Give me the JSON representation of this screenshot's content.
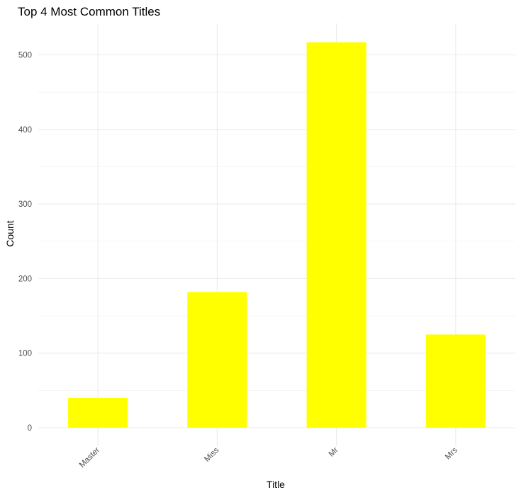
{
  "chart_data": {
    "type": "bar",
    "title": "Top 4 Most Common Titles",
    "xlabel": "Title",
    "ylabel": "Count",
    "categories": [
      "Master",
      "Miss",
      "Mr",
      "Mrs"
    ],
    "values": [
      40,
      182,
      517,
      125
    ],
    "ylim": [
      0,
      540
    ],
    "yticks": [
      0,
      100,
      200,
      300,
      400,
      500
    ],
    "bar_color": "#FFFF00",
    "grid": true,
    "legend": "none"
  }
}
